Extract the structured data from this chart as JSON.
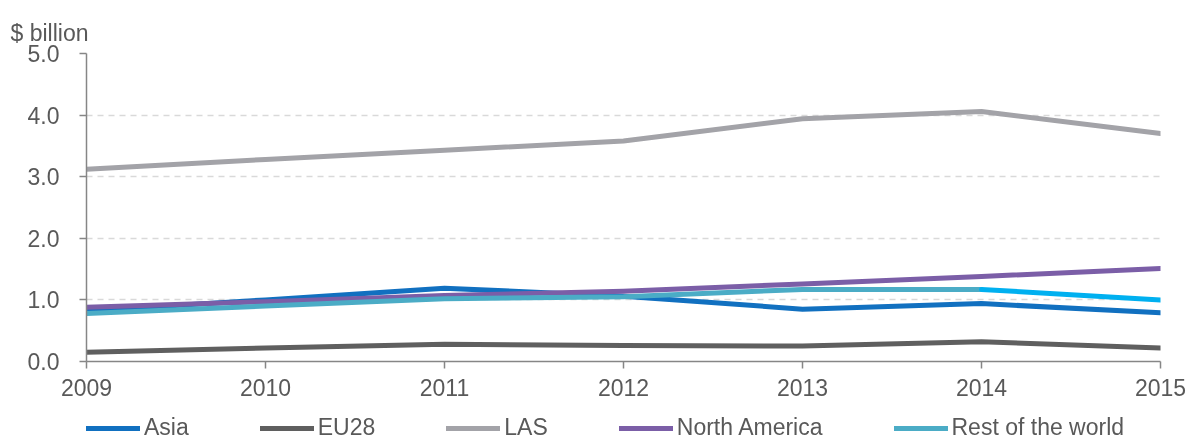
{
  "chart_data": {
    "type": "line",
    "ylabel": "$ billion",
    "x": [
      2009,
      2010,
      2011,
      2012,
      2013,
      2014,
      2015
    ],
    "xlim": [
      2009,
      2015
    ],
    "xticks": [
      2009,
      2010,
      2011,
      2012,
      2013,
      2014,
      2015
    ],
    "ylim": [
      0,
      5
    ],
    "yticks": [
      {
        "value": 0,
        "label": "0.0"
      },
      {
        "value": 1,
        "label": "1.0"
      },
      {
        "value": 2,
        "label": "2.0"
      },
      {
        "value": 3,
        "label": "3.0"
      },
      {
        "value": 4,
        "label": "4.0"
      },
      {
        "value": 5,
        "label": "5.0"
      }
    ],
    "grid": "y",
    "legend": "bottom",
    "line_style": "solid",
    "series": [
      {
        "name": "Asia",
        "color": "#1170c0",
        "values": [
          0.82,
          1.0,
          1.19,
          1.06,
          0.85,
          0.94,
          0.79
        ]
      },
      {
        "name": "EU28",
        "color": "#5f5f5f",
        "values": [
          0.15,
          0.22,
          0.28,
          0.26,
          0.25,
          0.32,
          0.22
        ]
      },
      {
        "name": "LAS",
        "color": "#a3a3a8",
        "values": [
          3.12,
          3.28,
          3.43,
          3.58,
          3.94,
          4.06,
          3.7
        ]
      },
      {
        "name": "North America",
        "color": "#7b5ea7",
        "values": [
          0.88,
          0.97,
          1.07,
          1.14,
          1.26,
          1.38,
          1.51
        ]
      },
      {
        "name": "Rest of the world",
        "color": "#4bacc6",
        "values": [
          0.78,
          0.9,
          1.02,
          1.05,
          1.17,
          1.17,
          null
        ]
      },
      {
        "color": "#00b0f0",
        "x": [
          2014,
          2015
        ],
        "values": [
          1.17,
          1.0
        ]
      }
    ]
  }
}
